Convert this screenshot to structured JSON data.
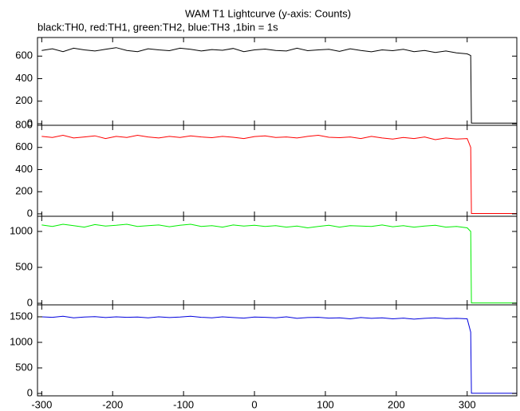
{
  "chart_data": [
    {
      "type": "line",
      "title": "WAM T1 Lightcurve (y-axis: Counts)",
      "subtitle": "black:TH0, red:TH1, green:TH2, blue:TH3 ,1bin = 1s",
      "color": "#000000",
      "x": [
        -300,
        -285,
        -270,
        -255,
        -240,
        -225,
        -210,
        -195,
        -180,
        -165,
        -150,
        -135,
        -120,
        -105,
        -90,
        -75,
        -60,
        -45,
        -30,
        -15,
        0,
        15,
        30,
        45,
        60,
        75,
        90,
        105,
        120,
        135,
        150,
        165,
        180,
        195,
        210,
        225,
        240,
        255,
        270,
        285,
        300,
        305,
        306,
        330,
        350,
        370
      ],
      "values": [
        650,
        665,
        640,
        670,
        655,
        645,
        660,
        675,
        650,
        640,
        665,
        655,
        648,
        670,
        660,
        645,
        658,
        652,
        668,
        640,
        655,
        662,
        650,
        645,
        670,
        648,
        655,
        660,
        642,
        665,
        650,
        638,
        655,
        648,
        660,
        640,
        650,
        632,
        645,
        628,
        620,
        605,
        5,
        5,
        5,
        5
      ],
      "xlim": [
        -306,
        370
      ],
      "xticks": [
        -300,
        -200,
        -100,
        0,
        100,
        200,
        300
      ],
      "ylim": [
        -14,
        765
      ],
      "yticks": [
        0,
        200,
        400,
        600
      ]
    },
    {
      "type": "line",
      "color": "#ff0000",
      "x": [
        -300,
        -285,
        -270,
        -255,
        -240,
        -225,
        -210,
        -195,
        -180,
        -165,
        -150,
        -135,
        -120,
        -105,
        -90,
        -75,
        -60,
        -45,
        -30,
        -15,
        0,
        15,
        30,
        45,
        60,
        75,
        90,
        105,
        120,
        135,
        150,
        165,
        180,
        195,
        210,
        225,
        240,
        255,
        270,
        285,
        300,
        305,
        306,
        330,
        350,
        370
      ],
      "values": [
        700,
        690,
        710,
        685,
        695,
        705,
        680,
        700,
        690,
        710,
        695,
        685,
        700,
        690,
        705,
        695,
        688,
        700,
        692,
        680,
        698,
        705,
        690,
        695,
        685,
        700,
        710,
        692,
        688,
        695,
        680,
        700,
        685,
        675,
        690,
        680,
        695,
        670,
        685,
        675,
        680,
        600,
        3,
        3,
        3,
        3
      ],
      "xlim": [
        -306,
        370
      ],
      "xticks": [
        -300,
        -200,
        -100,
        0,
        100,
        200,
        300
      ],
      "ylim": [
        -22,
        800
      ],
      "yticks": [
        0,
        200,
        400,
        600,
        800
      ]
    },
    {
      "type": "line",
      "color": "#00ee00",
      "x": [
        -300,
        -285,
        -270,
        -255,
        -240,
        -225,
        -210,
        -195,
        -180,
        -165,
        -150,
        -135,
        -120,
        -105,
        -90,
        -75,
        -60,
        -45,
        -30,
        -15,
        0,
        15,
        30,
        45,
        60,
        75,
        90,
        105,
        120,
        135,
        150,
        165,
        180,
        195,
        210,
        225,
        240,
        255,
        270,
        285,
        300,
        305,
        306,
        330,
        350,
        370
      ],
      "values": [
        1090,
        1070,
        1100,
        1080,
        1060,
        1095,
        1075,
        1085,
        1100,
        1070,
        1080,
        1090,
        1065,
        1085,
        1100,
        1070,
        1080,
        1060,
        1090,
        1075,
        1085,
        1070,
        1080,
        1060,
        1075,
        1050,
        1070,
        1085,
        1060,
        1080,
        1075,
        1070,
        1090,
        1065,
        1080,
        1060,
        1075,
        1085,
        1060,
        1070,
        1050,
        1000,
        5,
        5,
        5,
        5
      ],
      "xlim": [
        -306,
        370
      ],
      "xticks": [
        -300,
        -200,
        -100,
        0,
        100,
        200,
        300
      ],
      "ylim": [
        -22,
        1211
      ],
      "yticks": [
        0,
        500,
        1000
      ]
    },
    {
      "type": "line",
      "color": "#0000dd",
      "x": [
        -300,
        -285,
        -270,
        -255,
        -240,
        -225,
        -210,
        -195,
        -180,
        -165,
        -150,
        -135,
        -120,
        -105,
        -90,
        -75,
        -60,
        -45,
        -30,
        -15,
        0,
        15,
        30,
        45,
        60,
        75,
        90,
        105,
        120,
        135,
        150,
        165,
        180,
        195,
        210,
        225,
        240,
        255,
        270,
        285,
        300,
        305,
        306,
        330,
        350,
        370
      ],
      "values": [
        1500,
        1490,
        1510,
        1480,
        1495,
        1505,
        1485,
        1500,
        1490,
        1495,
        1480,
        1500,
        1485,
        1495,
        1510,
        1490,
        1480,
        1500,
        1485,
        1475,
        1495,
        1490,
        1480,
        1500,
        1470,
        1485,
        1490,
        1475,
        1480,
        1460,
        1485,
        1470,
        1480,
        1460,
        1475,
        1455,
        1470,
        1480,
        1465,
        1470,
        1460,
        1200,
        5,
        5,
        5,
        5
      ],
      "xlim": [
        -306,
        370
      ],
      "xticks": [
        -300,
        -200,
        -100,
        0,
        100,
        200,
        300
      ],
      "ylim": [
        -47,
        1734
      ],
      "yticks": [
        0,
        500,
        1000,
        1500
      ]
    }
  ]
}
